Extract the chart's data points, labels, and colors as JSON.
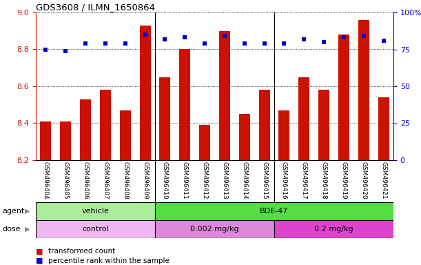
{
  "title": "GDS3608 / ILMN_1650864",
  "samples": [
    "GSM496404",
    "GSM496405",
    "GSM496406",
    "GSM496407",
    "GSM496408",
    "GSM496409",
    "GSM496410",
    "GSM496411",
    "GSM496412",
    "GSM496413",
    "GSM496414",
    "GSM496415",
    "GSM496416",
    "GSM496417",
    "GSM496418",
    "GSM496419",
    "GSM496420",
    "GSM496421"
  ],
  "transformed_count": [
    8.41,
    8.41,
    8.53,
    8.58,
    8.47,
    8.93,
    8.65,
    8.8,
    8.39,
    8.9,
    8.45,
    8.58,
    8.47,
    8.65,
    8.58,
    8.88,
    8.96,
    8.54
  ],
  "percentile_rank": [
    75,
    74,
    79,
    79,
    79,
    85,
    82,
    83,
    79,
    84,
    79,
    79,
    79,
    82,
    80,
    83,
    84,
    81
  ],
  "ylim_left": [
    8.2,
    9.0
  ],
  "ylim_right": [
    0,
    100
  ],
  "yticks_left": [
    8.2,
    8.4,
    8.6,
    8.8,
    9.0
  ],
  "yticks_right": [
    0,
    25,
    50,
    75,
    100
  ],
  "bar_color": "#cc1100",
  "dot_color": "#0000cc",
  "agent_groups": [
    {
      "label": "vehicle",
      "start": 0,
      "end": 6,
      "color": "#aaee99"
    },
    {
      "label": "BDE-47",
      "start": 6,
      "end": 18,
      "color": "#55dd44"
    }
  ],
  "dose_groups": [
    {
      "label": "control",
      "start": 0,
      "end": 6,
      "color": "#f0b8f0"
    },
    {
      "label": "0.002 mg/kg",
      "start": 6,
      "end": 12,
      "color": "#dd88dd"
    },
    {
      "label": "0.2 mg/kg",
      "start": 12,
      "end": 18,
      "color": "#dd44cc"
    }
  ],
  "legend_bar_label": "transformed count",
  "legend_dot_label": "percentile rank within the sample",
  "agent_label": "agent",
  "dose_label": "dose",
  "tick_area_color": "#cccccc",
  "separator_color": "#888888"
}
